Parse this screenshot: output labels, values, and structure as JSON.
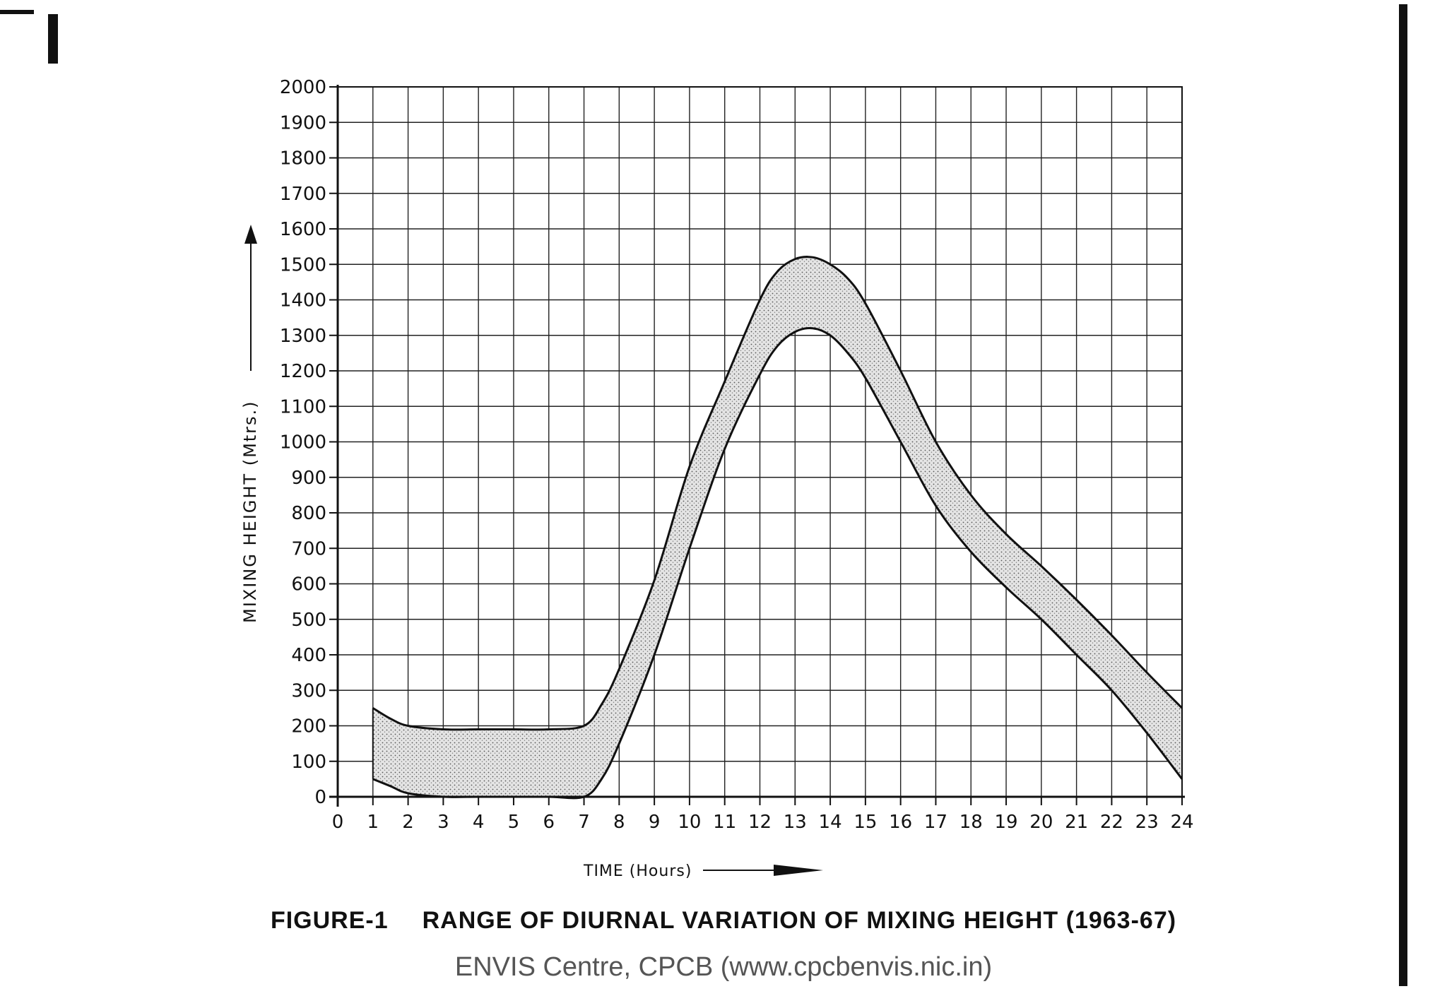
{
  "chart_data": {
    "type": "area",
    "title": "RANGE OF DIURNAL VARIATION OF MIXING HEIGHT (1963-67)",
    "figure_label": "FIGURE-1",
    "xlabel": "TIME (Hours)",
    "ylabel": "MIXING HEIGHT (Mtrs.)",
    "xlim": [
      0,
      24
    ],
    "ylim": [
      0,
      2000
    ],
    "x_ticks": [
      0,
      1,
      2,
      3,
      4,
      5,
      6,
      7,
      8,
      9,
      10,
      11,
      12,
      13,
      14,
      15,
      16,
      17,
      18,
      19,
      20,
      21,
      22,
      23,
      24
    ],
    "y_ticks": [
      0,
      100,
      200,
      300,
      400,
      500,
      600,
      700,
      800,
      900,
      1000,
      1100,
      1200,
      1300,
      1400,
      1500,
      1600,
      1700,
      1800,
      1900,
      2000
    ],
    "grid": true,
    "series": [
      {
        "name": "upper bound",
        "x": [
          1,
          1.5,
          2,
          3,
          4,
          5,
          6,
          7,
          7.5,
          8,
          9,
          10,
          11,
          12,
          12.5,
          13,
          13.5,
          14,
          14.5,
          15,
          16,
          17,
          18,
          19,
          20,
          21,
          22,
          23,
          24
        ],
        "values": [
          250,
          220,
          200,
          190,
          190,
          190,
          190,
          200,
          260,
          360,
          610,
          930,
          1170,
          1400,
          1480,
          1515,
          1520,
          1500,
          1460,
          1390,
          1200,
          1000,
          850,
          740,
          650,
          555,
          455,
          350,
          250
        ]
      },
      {
        "name": "lower bound",
        "x": [
          1,
          1.5,
          2,
          3,
          4,
          5,
          6,
          7,
          7.5,
          8,
          9,
          10,
          11,
          12,
          12.5,
          13,
          13.5,
          14,
          14.5,
          15,
          16,
          17,
          18,
          19,
          20,
          21,
          22,
          23,
          24
        ],
        "values": [
          50,
          30,
          10,
          0,
          0,
          0,
          0,
          0,
          50,
          150,
          400,
          700,
          980,
          1190,
          1270,
          1310,
          1320,
          1300,
          1250,
          1180,
          1000,
          820,
          690,
          590,
          500,
          400,
          300,
          180,
          50
        ]
      }
    ]
  },
  "caption": {
    "figure_number": "FIGURE-1",
    "figure_title": "RANGE OF DIURNAL VARIATION OF MIXING HEIGHT (1963-67)",
    "credit": "ENVIS Centre, CPCB (www.cpcbenvis.nic.in)"
  },
  "colors": {
    "ink": "#111111",
    "band_fill": "#c9c9c9",
    "credit_text": "#555555"
  }
}
